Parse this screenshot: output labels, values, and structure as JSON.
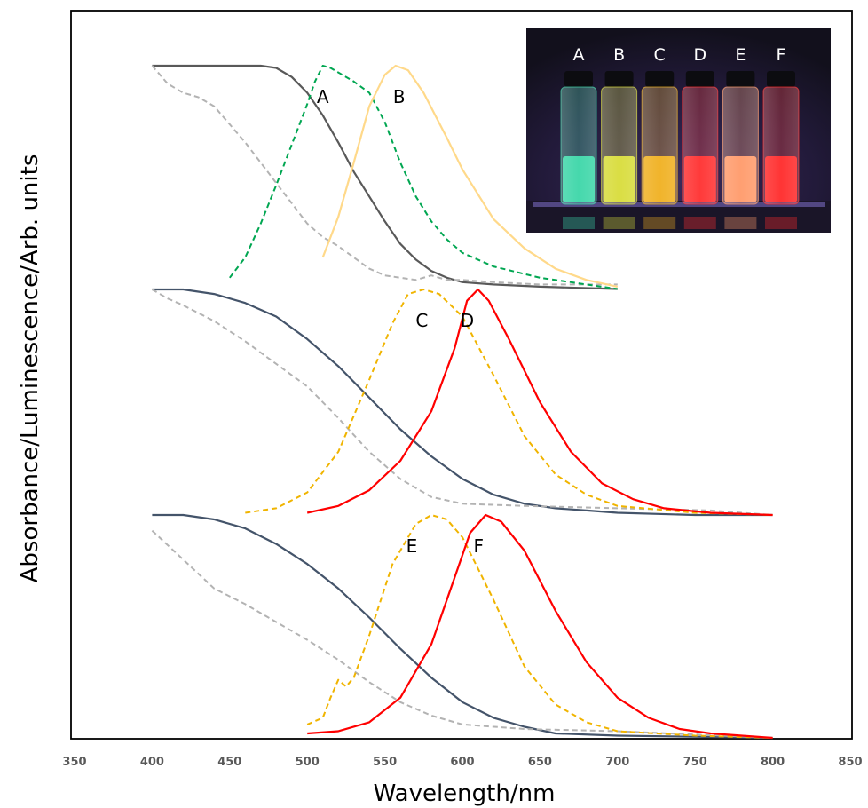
{
  "chart_data": {
    "type": "line",
    "xlabel": "Wavelength/nm",
    "ylabel": "Absorbance/Luminescence/Arb. units",
    "xlim": [
      350,
      850
    ],
    "x_ticks": [
      "350",
      "400",
      "450",
      "500",
      "550",
      "600",
      "650",
      "700",
      "750",
      "800",
      "850"
    ],
    "grid": false,
    "y_ticks": false,
    "panels": [
      {
        "name": "top",
        "baseline": 0,
        "series": [
          {
            "style": "solid",
            "color": "#595959",
            "points": [
              [
                400,
                1.0
              ],
              [
                420,
                1.0
              ],
              [
                450,
                1.0
              ],
              [
                470,
                1.0
              ],
              [
                480,
                0.99
              ],
              [
                490,
                0.95
              ],
              [
                500,
                0.88
              ],
              [
                510,
                0.78
              ],
              [
                520,
                0.66
              ],
              [
                530,
                0.53
              ],
              [
                540,
                0.42
              ],
              [
                550,
                0.31
              ],
              [
                560,
                0.21
              ],
              [
                570,
                0.14
              ],
              [
                580,
                0.09
              ],
              [
                590,
                0.06
              ],
              [
                600,
                0.04
              ],
              [
                620,
                0.03
              ],
              [
                650,
                0.02
              ],
              [
                700,
                0.01
              ]
            ]
          },
          {
            "style": "dashed",
            "color": "#b3b3b3",
            "points": [
              [
                400,
                1.0
              ],
              [
                410,
                0.92
              ],
              [
                420,
                0.88
              ],
              [
                430,
                0.86
              ],
              [
                440,
                0.82
              ],
              [
                450,
                0.74
              ],
              [
                460,
                0.66
              ],
              [
                470,
                0.57
              ],
              [
                480,
                0.48
              ],
              [
                490,
                0.39
              ],
              [
                500,
                0.3
              ],
              [
                510,
                0.24
              ],
              [
                520,
                0.2
              ],
              [
                530,
                0.15
              ],
              [
                540,
                0.1
              ],
              [
                550,
                0.07
              ],
              [
                560,
                0.06
              ],
              [
                570,
                0.05
              ],
              [
                580,
                0.07
              ],
              [
                590,
                0.05
              ],
              [
                600,
                0.05
              ],
              [
                620,
                0.04
              ],
              [
                650,
                0.03
              ],
              [
                700,
                0.03
              ]
            ]
          },
          {
            "style": "dashed",
            "color": "#00a651",
            "label": "A",
            "points": [
              [
                450,
                0.06
              ],
              [
                460,
                0.15
              ],
              [
                470,
                0.3
              ],
              [
                480,
                0.47
              ],
              [
                490,
                0.65
              ],
              [
                500,
                0.83
              ],
              [
                505,
                0.93
              ],
              [
                510,
                1.0
              ],
              [
                515,
                0.99
              ],
              [
                520,
                0.97
              ],
              [
                530,
                0.93
              ],
              [
                540,
                0.88
              ],
              [
                550,
                0.75
              ],
              [
                560,
                0.57
              ],
              [
                570,
                0.42
              ],
              [
                580,
                0.31
              ],
              [
                590,
                0.23
              ],
              [
                600,
                0.17
              ],
              [
                620,
                0.11
              ],
              [
                650,
                0.06
              ],
              [
                700,
                0.01
              ]
            ]
          },
          {
            "style": "solid",
            "color": "#ffd98a",
            "label": "B",
            "points": [
              [
                510,
                0.15
              ],
              [
                520,
                0.33
              ],
              [
                530,
                0.57
              ],
              [
                540,
                0.82
              ],
              [
                550,
                0.96
              ],
              [
                557,
                1.0
              ],
              [
                565,
                0.98
              ],
              [
                575,
                0.88
              ],
              [
                590,
                0.68
              ],
              [
                600,
                0.54
              ],
              [
                620,
                0.32
              ],
              [
                640,
                0.19
              ],
              [
                660,
                0.1
              ],
              [
                680,
                0.05
              ],
              [
                700,
                0.02
              ]
            ]
          }
        ]
      },
      {
        "name": "middle",
        "baseline": 0,
        "series": [
          {
            "style": "solid",
            "color": "#44546a",
            "points": [
              [
                400,
                1.0
              ],
              [
                410,
                1.0
              ],
              [
                420,
                1.0
              ],
              [
                440,
                0.98
              ],
              [
                460,
                0.94
              ],
              [
                480,
                0.88
              ],
              [
                500,
                0.78
              ],
              [
                520,
                0.66
              ],
              [
                540,
                0.52
              ],
              [
                560,
                0.38
              ],
              [
                580,
                0.26
              ],
              [
                600,
                0.16
              ],
              [
                620,
                0.09
              ],
              [
                640,
                0.05
              ],
              [
                660,
                0.03
              ],
              [
                680,
                0.02
              ],
              [
                700,
                0.01
              ],
              [
                750,
                0.0
              ],
              [
                800,
                0.0
              ]
            ]
          },
          {
            "style": "dashed",
            "color": "#b3b3b3",
            "points": [
              [
                400,
                1.0
              ],
              [
                410,
                0.96
              ],
              [
                420,
                0.93
              ],
              [
                440,
                0.86
              ],
              [
                460,
                0.77
              ],
              [
                480,
                0.67
              ],
              [
                500,
                0.57
              ],
              [
                520,
                0.43
              ],
              [
                540,
                0.28
              ],
              [
                560,
                0.16
              ],
              [
                580,
                0.08
              ],
              [
                600,
                0.05
              ],
              [
                640,
                0.04
              ],
              [
                700,
                0.03
              ],
              [
                760,
                0.02
              ],
              [
                800,
                0.0
              ]
            ]
          },
          {
            "style": "dashed",
            "color": "#f0b400",
            "label": "C",
            "points": [
              [
                460,
                0.01
              ],
              [
                480,
                0.03
              ],
              [
                500,
                0.1
              ],
              [
                520,
                0.28
              ],
              [
                540,
                0.6
              ],
              [
                555,
                0.85
              ],
              [
                565,
                0.98
              ],
              [
                575,
                1.0
              ],
              [
                585,
                0.98
              ],
              [
                600,
                0.88
              ],
              [
                620,
                0.62
              ],
              [
                640,
                0.35
              ],
              [
                660,
                0.18
              ],
              [
                680,
                0.09
              ],
              [
                700,
                0.04
              ],
              [
                750,
                0.01
              ],
              [
                800,
                0.0
              ]
            ]
          },
          {
            "style": "solid",
            "color": "#ff0000",
            "label": "D",
            "points": [
              [
                500,
                0.01
              ],
              [
                520,
                0.04
              ],
              [
                540,
                0.11
              ],
              [
                560,
                0.24
              ],
              [
                580,
                0.46
              ],
              [
                595,
                0.74
              ],
              [
                603,
                0.95
              ],
              [
                610,
                1.0
              ],
              [
                617,
                0.95
              ],
              [
                630,
                0.78
              ],
              [
                650,
                0.5
              ],
              [
                670,
                0.28
              ],
              [
                690,
                0.14
              ],
              [
                710,
                0.07
              ],
              [
                730,
                0.03
              ],
              [
                760,
                0.01
              ],
              [
                800,
                0.0
              ]
            ]
          }
        ]
      },
      {
        "name": "bottom",
        "baseline": 0,
        "series": [
          {
            "style": "solid",
            "color": "#44546a",
            "points": [
              [
                400,
                1.0
              ],
              [
                410,
                1.0
              ],
              [
                420,
                1.0
              ],
              [
                440,
                0.98
              ],
              [
                460,
                0.94
              ],
              [
                480,
                0.87
              ],
              [
                500,
                0.78
              ],
              [
                520,
                0.67
              ],
              [
                540,
                0.54
              ],
              [
                560,
                0.4
              ],
              [
                580,
                0.27
              ],
              [
                600,
                0.16
              ],
              [
                620,
                0.09
              ],
              [
                640,
                0.05
              ],
              [
                660,
                0.02
              ],
              [
                700,
                0.01
              ],
              [
                800,
                0.0
              ]
            ]
          },
          {
            "style": "dashed",
            "color": "#b3b3b3",
            "points": [
              [
                400,
                0.93
              ],
              [
                420,
                0.8
              ],
              [
                440,
                0.67
              ],
              [
                460,
                0.6
              ],
              [
                480,
                0.52
              ],
              [
                500,
                0.44
              ],
              [
                520,
                0.35
              ],
              [
                540,
                0.25
              ],
              [
                560,
                0.16
              ],
              [
                580,
                0.1
              ],
              [
                600,
                0.06
              ],
              [
                640,
                0.04
              ],
              [
                700,
                0.03
              ],
              [
                800,
                0.0
              ]
            ]
          },
          {
            "style": "dashed",
            "color": "#f0b400",
            "label": "E",
            "points": [
              [
                500,
                0.06
              ],
              [
                510,
                0.09
              ],
              [
                515,
                0.18
              ],
              [
                520,
                0.26
              ],
              [
                525,
                0.23
              ],
              [
                530,
                0.27
              ],
              [
                540,
                0.46
              ],
              [
                555,
                0.78
              ],
              [
                570,
                0.96
              ],
              [
                580,
                1.0
              ],
              [
                590,
                0.98
              ],
              [
                600,
                0.9
              ],
              [
                620,
                0.62
              ],
              [
                640,
                0.32
              ],
              [
                660,
                0.15
              ],
              [
                680,
                0.07
              ],
              [
                700,
                0.03
              ],
              [
                750,
                0.01
              ],
              [
                800,
                0.0
              ]
            ]
          },
          {
            "style": "solid",
            "color": "#ff0000",
            "label": "F",
            "points": [
              [
                500,
                0.02
              ],
              [
                520,
                0.03
              ],
              [
                540,
                0.07
              ],
              [
                560,
                0.18
              ],
              [
                580,
                0.42
              ],
              [
                595,
                0.72
              ],
              [
                605,
                0.92
              ],
              [
                615,
                1.0
              ],
              [
                625,
                0.97
              ],
              [
                640,
                0.84
              ],
              [
                660,
                0.57
              ],
              [
                680,
                0.34
              ],
              [
                700,
                0.18
              ],
              [
                720,
                0.09
              ],
              [
                740,
                0.04
              ],
              [
                760,
                0.02
              ],
              [
                800,
                0.0
              ]
            ]
          }
        ]
      }
    ]
  },
  "inset": {
    "vial_labels": [
      "A",
      "B",
      "C",
      "D",
      "E",
      "F"
    ],
    "vial_colors": [
      "#3cd6a8",
      "#d8dc3a",
      "#f0b020",
      "#ff3030",
      "#ff9a6a",
      "#ff2a2a"
    ]
  }
}
